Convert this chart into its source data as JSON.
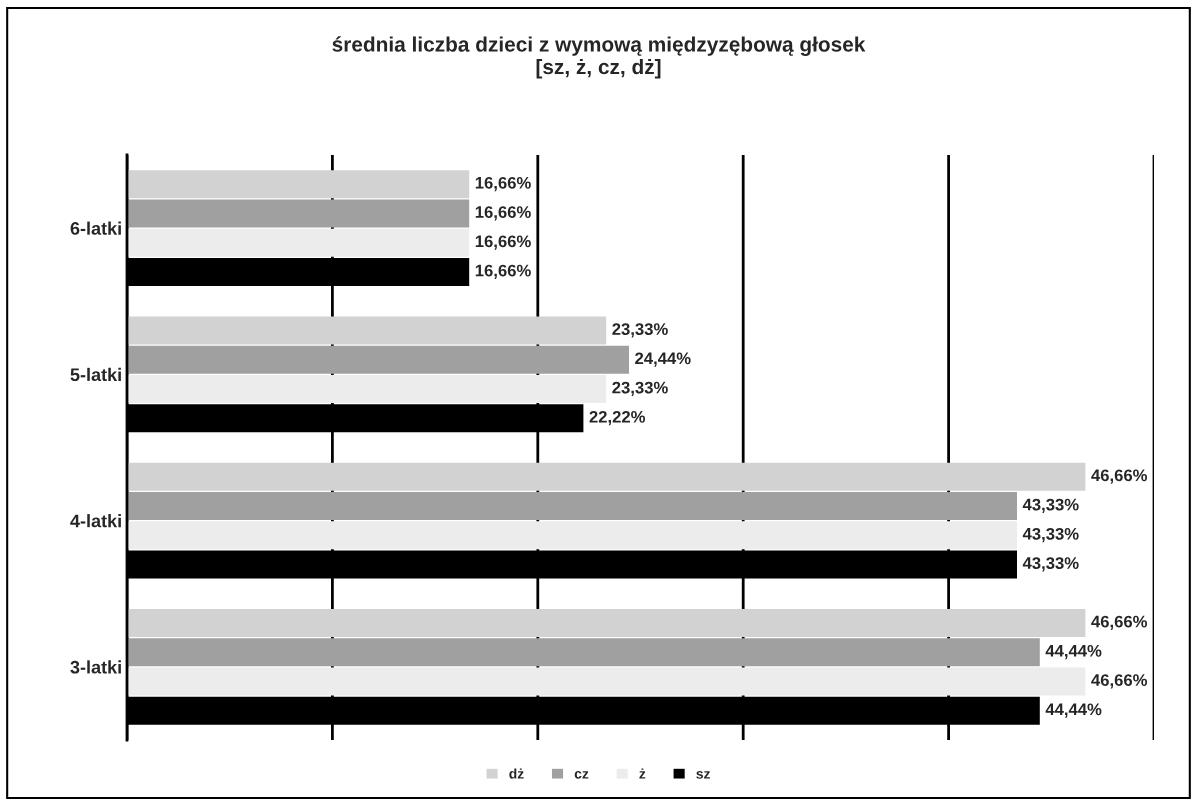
{
  "chart_data": {
    "type": "bar",
    "orientation": "horizontal",
    "title": "średnia liczba dzieci z wymową międzyzębową głosek\n[sz, ż, cz, dż]",
    "categories": [
      "6-latki",
      "5-latki",
      "4-latki",
      "3-latki"
    ],
    "series": [
      {
        "name": "dż",
        "color": "#d2d2d2",
        "values": [
          16.66,
          23.33,
          46.66,
          46.66
        ],
        "value_labels": [
          "16,66%",
          "23,33%",
          "46,66%",
          "46,66%"
        ]
      },
      {
        "name": "cz",
        "color": "#a0a0a0",
        "values": [
          16.66,
          24.44,
          43.33,
          44.44
        ],
        "value_labels": [
          "16,66%",
          "24,44%",
          "43,33%",
          "44,44%"
        ]
      },
      {
        "name": "ż",
        "color": "#ececec",
        "values": [
          16.66,
          23.33,
          43.33,
          46.66
        ],
        "value_labels": [
          "16,66%",
          "23,33%",
          "43,33%",
          "46,66%"
        ]
      },
      {
        "name": "sz",
        "color": "#000000",
        "values": [
          16.66,
          22.22,
          43.33,
          44.44
        ],
        "value_labels": [
          "16,66%",
          "22,22%",
          "43,33%",
          "44,44%"
        ]
      }
    ],
    "xlim": [
      0,
      50
    ],
    "xticks": [
      {
        "value": 0,
        "label": null
      },
      {
        "value": 10,
        "label": null
      },
      {
        "value": 20,
        "label": null
      },
      {
        "value": 30,
        "label": null
      },
      {
        "value": 40,
        "label": null
      },
      {
        "value": 50,
        "label": null
      }
    ],
    "tick_labels": "y",
    "grid": "x",
    "legend": "bottom"
  }
}
